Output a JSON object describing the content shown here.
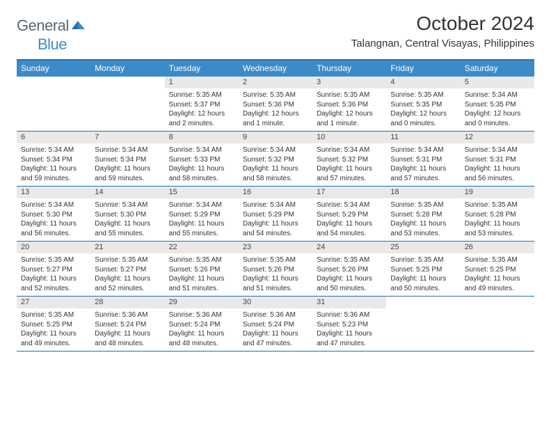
{
  "logo": {
    "text1": "General",
    "text2": "Blue"
  },
  "title": "October 2024",
  "location": "Talangnan, Central Visayas, Philippines",
  "colors": {
    "header_bar": "#3b8bc9",
    "header_border": "#1f6fb2",
    "daynum_bg": "#e9e9e9",
    "text": "#333333",
    "logo_gray": "#5b6770",
    "logo_blue": "#3b8bc9"
  },
  "day_names": [
    "Sunday",
    "Monday",
    "Tuesday",
    "Wednesday",
    "Thursday",
    "Friday",
    "Saturday"
  ],
  "cell_fontsize": 10,
  "weeks": [
    [
      null,
      null,
      {
        "n": "1",
        "sr": "Sunrise: 5:35 AM",
        "ss": "Sunset: 5:37 PM",
        "d1": "Daylight: 12 hours",
        "d2": "and 2 minutes."
      },
      {
        "n": "2",
        "sr": "Sunrise: 5:35 AM",
        "ss": "Sunset: 5:36 PM",
        "d1": "Daylight: 12 hours",
        "d2": "and 1 minute."
      },
      {
        "n": "3",
        "sr": "Sunrise: 5:35 AM",
        "ss": "Sunset: 5:36 PM",
        "d1": "Daylight: 12 hours",
        "d2": "and 1 minute."
      },
      {
        "n": "4",
        "sr": "Sunrise: 5:35 AM",
        "ss": "Sunset: 5:35 PM",
        "d1": "Daylight: 12 hours",
        "d2": "and 0 minutes."
      },
      {
        "n": "5",
        "sr": "Sunrise: 5:34 AM",
        "ss": "Sunset: 5:35 PM",
        "d1": "Daylight: 12 hours",
        "d2": "and 0 minutes."
      }
    ],
    [
      {
        "n": "6",
        "sr": "Sunrise: 5:34 AM",
        "ss": "Sunset: 5:34 PM",
        "d1": "Daylight: 11 hours",
        "d2": "and 59 minutes."
      },
      {
        "n": "7",
        "sr": "Sunrise: 5:34 AM",
        "ss": "Sunset: 5:34 PM",
        "d1": "Daylight: 11 hours",
        "d2": "and 59 minutes."
      },
      {
        "n": "8",
        "sr": "Sunrise: 5:34 AM",
        "ss": "Sunset: 5:33 PM",
        "d1": "Daylight: 11 hours",
        "d2": "and 58 minutes."
      },
      {
        "n": "9",
        "sr": "Sunrise: 5:34 AM",
        "ss": "Sunset: 5:32 PM",
        "d1": "Daylight: 11 hours",
        "d2": "and 58 minutes."
      },
      {
        "n": "10",
        "sr": "Sunrise: 5:34 AM",
        "ss": "Sunset: 5:32 PM",
        "d1": "Daylight: 11 hours",
        "d2": "and 57 minutes."
      },
      {
        "n": "11",
        "sr": "Sunrise: 5:34 AM",
        "ss": "Sunset: 5:31 PM",
        "d1": "Daylight: 11 hours",
        "d2": "and 57 minutes."
      },
      {
        "n": "12",
        "sr": "Sunrise: 5:34 AM",
        "ss": "Sunset: 5:31 PM",
        "d1": "Daylight: 11 hours",
        "d2": "and 56 minutes."
      }
    ],
    [
      {
        "n": "13",
        "sr": "Sunrise: 5:34 AM",
        "ss": "Sunset: 5:30 PM",
        "d1": "Daylight: 11 hours",
        "d2": "and 56 minutes."
      },
      {
        "n": "14",
        "sr": "Sunrise: 5:34 AM",
        "ss": "Sunset: 5:30 PM",
        "d1": "Daylight: 11 hours",
        "d2": "and 55 minutes."
      },
      {
        "n": "15",
        "sr": "Sunrise: 5:34 AM",
        "ss": "Sunset: 5:29 PM",
        "d1": "Daylight: 11 hours",
        "d2": "and 55 minutes."
      },
      {
        "n": "16",
        "sr": "Sunrise: 5:34 AM",
        "ss": "Sunset: 5:29 PM",
        "d1": "Daylight: 11 hours",
        "d2": "and 54 minutes."
      },
      {
        "n": "17",
        "sr": "Sunrise: 5:34 AM",
        "ss": "Sunset: 5:29 PM",
        "d1": "Daylight: 11 hours",
        "d2": "and 54 minutes."
      },
      {
        "n": "18",
        "sr": "Sunrise: 5:35 AM",
        "ss": "Sunset: 5:28 PM",
        "d1": "Daylight: 11 hours",
        "d2": "and 53 minutes."
      },
      {
        "n": "19",
        "sr": "Sunrise: 5:35 AM",
        "ss": "Sunset: 5:28 PM",
        "d1": "Daylight: 11 hours",
        "d2": "and 53 minutes."
      }
    ],
    [
      {
        "n": "20",
        "sr": "Sunrise: 5:35 AM",
        "ss": "Sunset: 5:27 PM",
        "d1": "Daylight: 11 hours",
        "d2": "and 52 minutes."
      },
      {
        "n": "21",
        "sr": "Sunrise: 5:35 AM",
        "ss": "Sunset: 5:27 PM",
        "d1": "Daylight: 11 hours",
        "d2": "and 52 minutes."
      },
      {
        "n": "22",
        "sr": "Sunrise: 5:35 AM",
        "ss": "Sunset: 5:26 PM",
        "d1": "Daylight: 11 hours",
        "d2": "and 51 minutes."
      },
      {
        "n": "23",
        "sr": "Sunrise: 5:35 AM",
        "ss": "Sunset: 5:26 PM",
        "d1": "Daylight: 11 hours",
        "d2": "and 51 minutes."
      },
      {
        "n": "24",
        "sr": "Sunrise: 5:35 AM",
        "ss": "Sunset: 5:26 PM",
        "d1": "Daylight: 11 hours",
        "d2": "and 50 minutes."
      },
      {
        "n": "25",
        "sr": "Sunrise: 5:35 AM",
        "ss": "Sunset: 5:25 PM",
        "d1": "Daylight: 11 hours",
        "d2": "and 50 minutes."
      },
      {
        "n": "26",
        "sr": "Sunrise: 5:35 AM",
        "ss": "Sunset: 5:25 PM",
        "d1": "Daylight: 11 hours",
        "d2": "and 49 minutes."
      }
    ],
    [
      {
        "n": "27",
        "sr": "Sunrise: 5:35 AM",
        "ss": "Sunset: 5:25 PM",
        "d1": "Daylight: 11 hours",
        "d2": "and 49 minutes."
      },
      {
        "n": "28",
        "sr": "Sunrise: 5:36 AM",
        "ss": "Sunset: 5:24 PM",
        "d1": "Daylight: 11 hours",
        "d2": "and 48 minutes."
      },
      {
        "n": "29",
        "sr": "Sunrise: 5:36 AM",
        "ss": "Sunset: 5:24 PM",
        "d1": "Daylight: 11 hours",
        "d2": "and 48 minutes."
      },
      {
        "n": "30",
        "sr": "Sunrise: 5:36 AM",
        "ss": "Sunset: 5:24 PM",
        "d1": "Daylight: 11 hours",
        "d2": "and 47 minutes."
      },
      {
        "n": "31",
        "sr": "Sunrise: 5:36 AM",
        "ss": "Sunset: 5:23 PM",
        "d1": "Daylight: 11 hours",
        "d2": "and 47 minutes."
      },
      null,
      null
    ]
  ]
}
